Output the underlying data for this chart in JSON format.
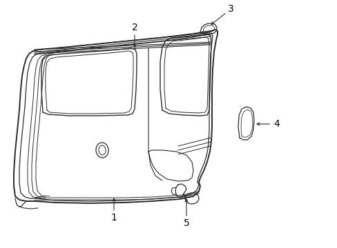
{
  "background_color": "#ffffff",
  "line_color": "#2a2a2a",
  "line_width": 1.0,
  "label_fontsize": 10,
  "figsize": [
    4.89,
    3.6
  ],
  "dpi": 100
}
